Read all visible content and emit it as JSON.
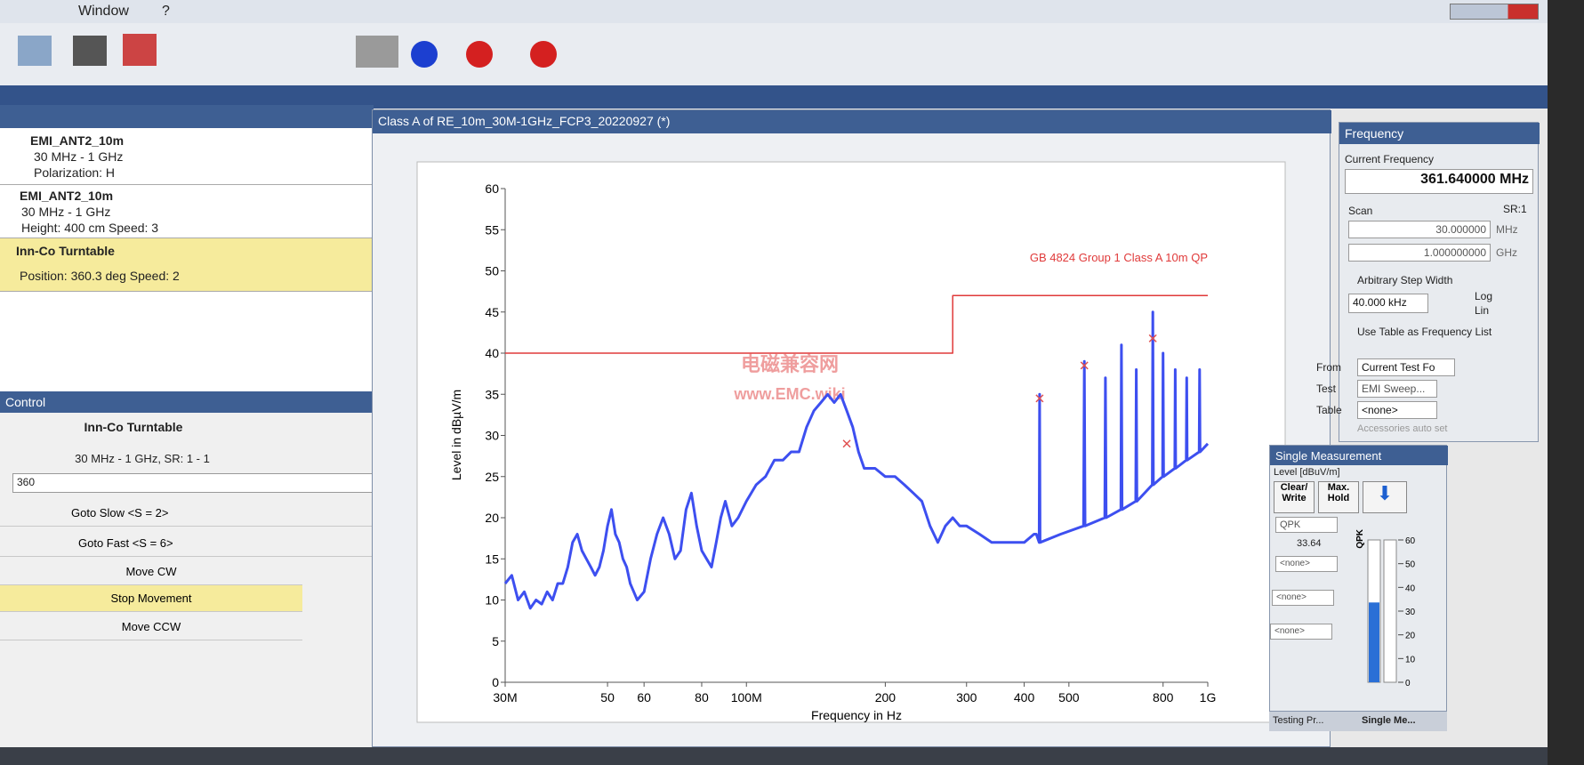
{
  "menu": [
    "Window",
    "?"
  ],
  "devices": {
    "items": [
      {
        "name": "EMI_ANT2_10m",
        "lines": [
          "30 MHz - 1 GHz",
          "Polarization: H"
        ]
      },
      {
        "name": "EMI_ANT2_10m",
        "lines": [
          "30 MHz - 1 GHz",
          "Height: 400 cm Speed: 3"
        ]
      },
      {
        "name": "Inn-Co Turntable",
        "lines": [
          "Position: 360.3 deg Speed: 2"
        ]
      }
    ]
  },
  "control": {
    "title": "Control",
    "device": "Inn-Co Turntable",
    "range": "30 MHz - 1 GHz, SR: 1 - 1",
    "input": "360",
    "buttons": [
      "Goto Slow <S = 2>",
      "Goto Fast <S = 6>",
      "Move CW",
      "Stop Movement",
      "Move CCW"
    ]
  },
  "window_title": "Class A of RE_10m_30M-1GHz_FCP3_20220927 (*)",
  "watermark": [
    "电磁兼容网",
    "www.EMC.wiki"
  ],
  "chart_data": {
    "type": "line",
    "xlabel": "Frequency in Hz",
    "ylabel": "Level in dBµV/m",
    "xscale": "log",
    "xlim": [
      30000000,
      1000000000
    ],
    "xticks": [
      {
        "value": 30000000,
        "label": "30M"
      },
      {
        "value": 50000000,
        "label": "50"
      },
      {
        "value": 60000000,
        "label": "60"
      },
      {
        "value": 80000000,
        "label": "80"
      },
      {
        "value": 100000000,
        "label": "100M"
      },
      {
        "value": 200000000,
        "label": "200"
      },
      {
        "value": 300000000,
        "label": "300"
      },
      {
        "value": 400000000,
        "label": "400"
      },
      {
        "value": 500000000,
        "label": "500"
      },
      {
        "value": 800000000,
        "label": "800"
      },
      {
        "value": 1000000000,
        "label": "1G"
      }
    ],
    "ylim": [
      0,
      60
    ],
    "yticks": [
      0,
      5,
      10,
      15,
      20,
      25,
      30,
      35,
      40,
      45,
      50,
      55,
      60
    ],
    "series": [
      {
        "color": "#3d4ff0",
        "x": [
          30000000,
          31000000,
          32000000,
          33000000,
          34000000,
          35000000,
          36000000,
          37000000,
          38000000,
          39000000,
          40000000,
          41000000,
          42000000,
          43000000,
          44000000,
          45000000,
          46000000,
          47000000,
          48000000,
          49000000,
          50000000,
          51000000,
          52000000,
          53000000,
          54000000,
          55000000,
          56000000,
          57000000,
          58000000,
          60000000,
          62000000,
          64000000,
          66000000,
          68000000,
          70000000,
          72000000,
          74000000,
          76000000,
          78000000,
          80000000,
          82000000,
          84000000,
          86000000,
          88000000,
          90000000,
          93000000,
          96000000,
          100000000,
          105000000,
          110000000,
          115000000,
          120000000,
          125000000,
          130000000,
          135000000,
          140000000,
          145000000,
          150000000,
          155000000,
          160000000,
          165000000,
          170000000,
          175000000,
          180000000,
          190000000,
          200000000,
          210000000,
          220000000,
          230000000,
          240000000,
          250000000,
          260000000,
          270000000,
          280000000,
          290000000,
          300000000,
          320000000,
          340000000,
          360000000,
          380000000,
          400000000,
          420000000,
          425000000,
          431000000,
          432000000,
          433000000,
          480000000,
          538000000,
          540000000,
          542000000,
          598000000,
          600000000,
          602000000,
          648000000,
          650000000,
          652000000,
          698000000,
          700000000,
          702000000,
          758000000,
          760000000,
          762000000,
          798000000,
          800000000,
          802000000,
          848000000,
          850000000,
          852000000,
          898000000,
          900000000,
          902000000,
          958000000,
          960000000,
          962000000,
          1000000000
        ],
        "values": [
          12,
          13,
          10,
          11,
          9,
          10,
          9.5,
          11,
          10,
          12,
          12,
          14,
          17,
          18,
          16,
          15,
          14,
          13,
          14,
          16,
          19,
          21,
          18,
          17,
          15,
          14,
          12,
          11,
          10,
          11,
          15,
          18,
          20,
          18,
          15,
          16,
          21,
          23,
          19,
          16,
          15,
          14,
          17,
          20,
          22,
          19,
          20,
          22,
          24,
          25,
          27,
          27,
          28,
          28,
          31,
          33,
          34,
          35,
          34,
          35,
          33,
          31,
          28,
          26,
          26,
          25,
          25,
          24,
          23,
          22,
          19,
          17,
          19,
          20,
          19,
          19,
          18,
          17,
          17,
          17,
          17,
          18,
          18,
          17,
          35,
          17,
          18,
          19,
          39,
          19,
          20,
          37,
          20,
          21,
          41,
          21,
          22,
          38,
          22,
          24,
          45,
          24,
          25,
          40,
          25,
          26,
          38,
          26,
          27,
          37,
          27,
          28,
          38,
          28,
          29
        ]
      },
      {
        "color": "#e03a3a",
        "x": [
          30000000,
          280000000,
          280000000,
          1000000000
        ],
        "values": [
          40,
          40,
          47,
          47
        ]
      }
    ],
    "markers": {
      "color": "#e05050",
      "x": [
        165000000,
        432000000,
        540000000,
        760000000
      ],
      "values": [
        29,
        34.5,
        38.5,
        41.8
      ]
    },
    "annotation": "GB 4824 Group 1 Class A 10m QP"
  },
  "frequency": {
    "title": "Frequency",
    "current_label": "Current Frequency",
    "current": "361.640000 MHz",
    "scan": "Scan",
    "sr": "SR:1",
    "start": "30.000000",
    "start_unit": "MHz",
    "stop": "1.000000000",
    "stop_unit": "GHz",
    "arbitrary": "Arbitrary Step Width",
    "step": "40.000 kHz",
    "log": "Log",
    "lin": "Lin",
    "use_table": "Use Table as Frequency List",
    "from_label": "From",
    "from": "Current Test Fo",
    "test_label": "Test",
    "test": "EMI Sweep...",
    "table_label": "Table",
    "table": "<none>",
    "accessories": "Accessories auto set"
  },
  "single": {
    "title": "Single Measurement",
    "level_label": "Level [dBuV/m]",
    "clear": "Clear/ Write",
    "max": "Max. Hold",
    "detector": "QPK",
    "reading": 33.64,
    "meter_label": "QPK",
    "selects": [
      "<none>",
      "<none>",
      "<none>"
    ],
    "meter_ylim": [
      0,
      60
    ],
    "meter_ticks": [
      0,
      10,
      20,
      30,
      40,
      50,
      60
    ]
  },
  "tabs": [
    "Testing Pr...",
    "Single Me..."
  ]
}
